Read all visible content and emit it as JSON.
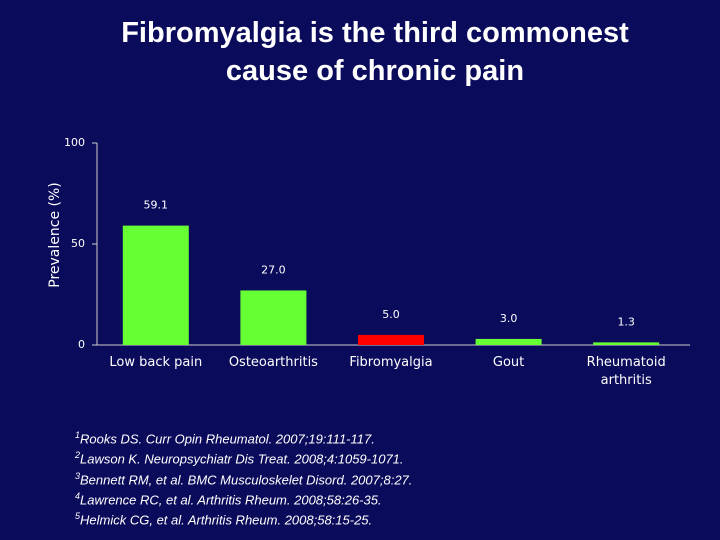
{
  "chart_data": {
    "type": "bar",
    "title": "Fibromyalgia is the third commonest cause of chronic pain",
    "y_label": "Prevalence (%)",
    "categories": [
      "Low back pain",
      "Osteoarthritis",
      "Fibromyalgia",
      "Gout",
      "Rheumatoid arthritis"
    ],
    "values": [
      59.1,
      27.0,
      5.0,
      3.0,
      1.3
    ],
    "value_labels": [
      "59.1",
      "27.0",
      "5.0",
      "3.0",
      "1.3"
    ],
    "colors": [
      "#66ff33",
      "#66ff33",
      "#ff0000",
      "#66ff33",
      "#66ff33"
    ],
    "ylim": [
      0,
      100
    ],
    "yticks": [
      0,
      50,
      100
    ],
    "grid": false,
    "footnotes": [
      {
        "mark": "1",
        "text": "Rooks DS. Curr Opin Rheumatol. 2007;19:111-117."
      },
      {
        "mark": "2",
        "text": "Lawson K. Neuropsychiatr Dis Treat. 2008;4:1059-1071."
      },
      {
        "mark": "3",
        "text": "Bennett RM, et al. BMC Musculoskelet Disord. 2007;8:27."
      },
      {
        "mark": "4",
        "text": "Lawrence RC, et al. Arthritis Rheum. 2008;58:26-35."
      },
      {
        "mark": "5",
        "text": "Helmick CG, et al. Arthritis Rheum. 2008;58:15-25."
      }
    ]
  }
}
